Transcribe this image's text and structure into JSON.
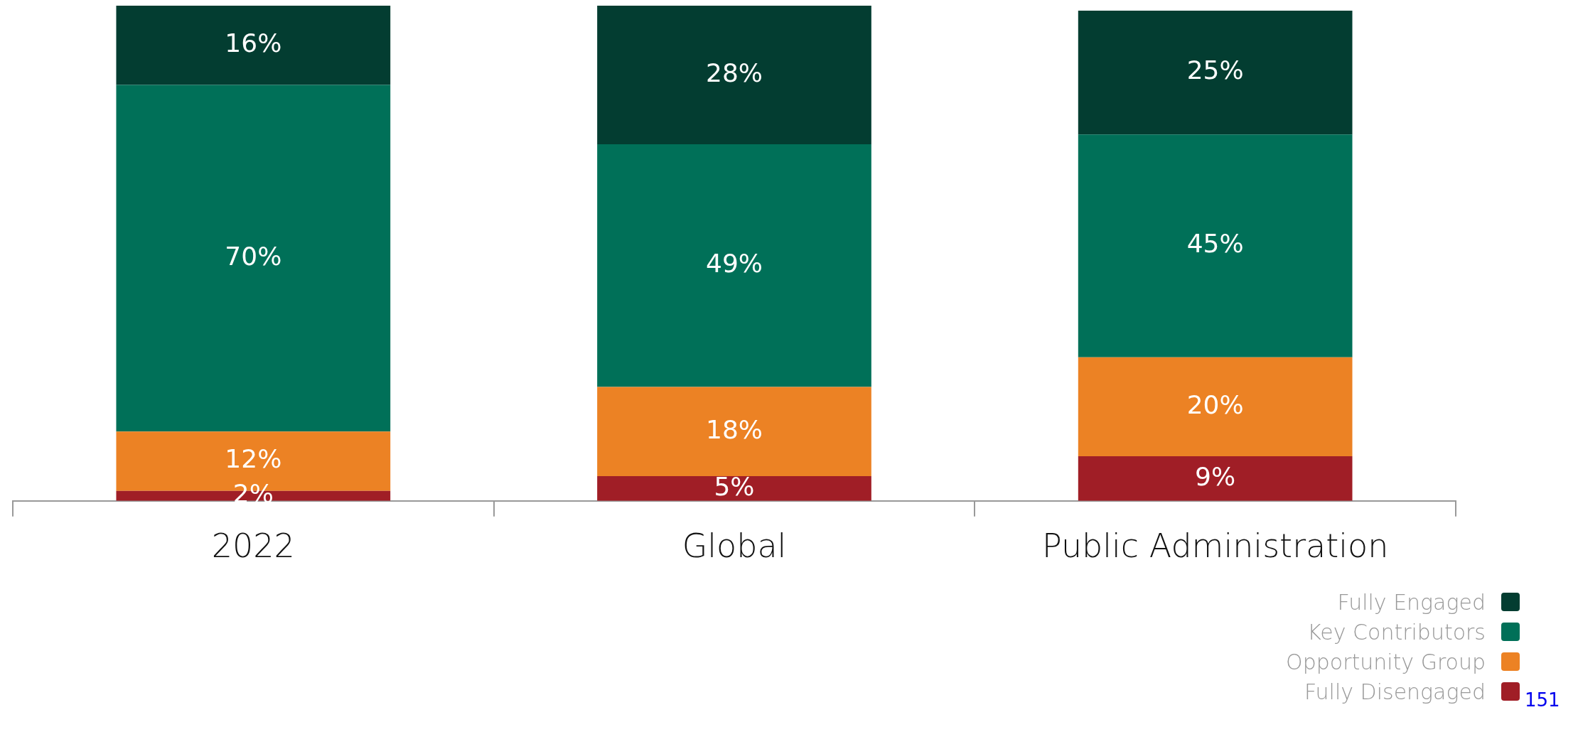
{
  "chart_data": {
    "type": "bar",
    "stacked": true,
    "categories": [
      "2022",
      "Global",
      "Public Administration"
    ],
    "series": [
      {
        "name": "Fully Disengaged",
        "color": "#a01e26",
        "values": [
          2,
          5,
          9
        ],
        "value_labels": [
          "2%",
          "5%",
          "9%"
        ]
      },
      {
        "name": "Opportunity Group",
        "color": "#ec8224",
        "values": [
          12,
          18,
          20
        ],
        "value_labels": [
          "12%",
          "18%",
          "20%"
        ]
      },
      {
        "name": "Key Contributors",
        "color": "#007058",
        "values": [
          70,
          49,
          45
        ],
        "value_labels": [
          "70%",
          "49%",
          "45%"
        ]
      },
      {
        "name": "Fully Engaged",
        "color": "#033d31",
        "values": [
          16,
          28,
          25
        ],
        "value_labels": [
          "16%",
          "28%",
          "25%"
        ]
      }
    ],
    "legend": "bottom right",
    "grid": false,
    "annotations": [
      "151"
    ]
  }
}
